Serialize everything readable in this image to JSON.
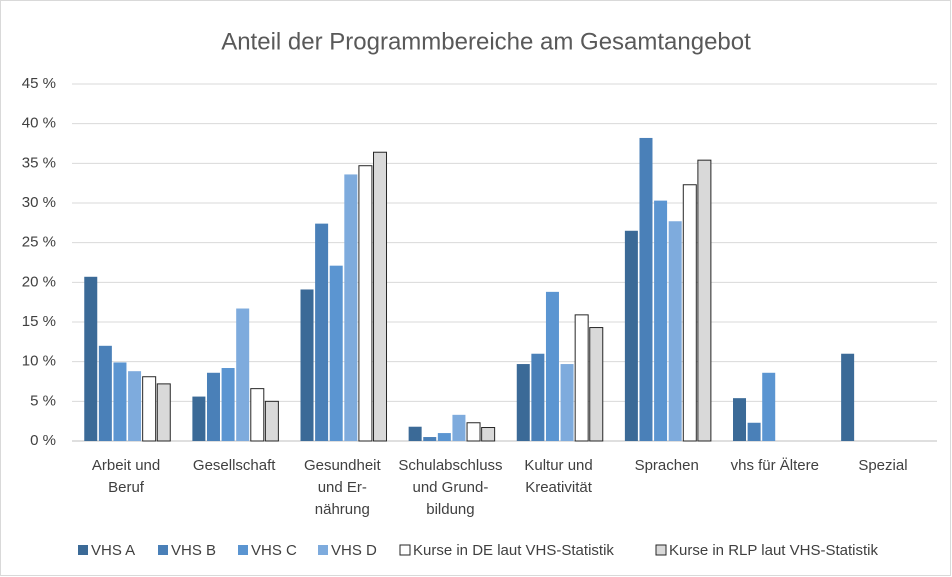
{
  "chart_data": {
    "type": "bar",
    "title": "Anteil der Programmbereiche am Gesamtangebot",
    "categories": [
      "Arbeit und\nBeruf",
      "Gesellschaft",
      "Gesundheit\nund Er-\nnährung",
      "Schulabschluss\nund Grund-\nbildung",
      "Kultur und\nKreativität",
      "Sprachen",
      "vhs für Ältere",
      "Spezial"
    ],
    "series": [
      {
        "name": "VHS A",
        "color": "#3b6a97",
        "values": [
          20.7,
          5.6,
          19.1,
          1.8,
          9.7,
          26.5,
          5.4,
          11.0
        ]
      },
      {
        "name": "VHS B",
        "color": "#4a80b8",
        "values": [
          12.0,
          8.6,
          27.4,
          0.5,
          11.0,
          38.2,
          2.3,
          null
        ]
      },
      {
        "name": "VHS C",
        "color": "#5b95d1",
        "values": [
          9.9,
          9.2,
          22.1,
          1.0,
          18.8,
          30.3,
          8.6,
          null
        ]
      },
      {
        "name": "VHS D",
        "color": "#7eabdd",
        "values": [
          8.8,
          16.7,
          33.6,
          3.3,
          9.7,
          27.7,
          null,
          null
        ]
      },
      {
        "name": "Kurse in DE laut VHS-Statistik",
        "color": "#ffffff",
        "values": [
          8.1,
          6.6,
          34.7,
          2.3,
          15.9,
          32.3,
          null,
          null
        ]
      },
      {
        "name": "Kurse in RLP laut VHS-Statistik",
        "color": "#d9d9d9",
        "values": [
          7.2,
          5.0,
          36.4,
          1.7,
          14.3,
          35.4,
          null,
          null
        ]
      }
    ],
    "ylim": [
      0,
      45
    ],
    "yticks": [
      {
        "value": 0,
        "label": "0 %"
      },
      {
        "value": 5,
        "label": "5 %"
      },
      {
        "value": 10,
        "label": "10 %"
      },
      {
        "value": 15,
        "label": "15 %"
      },
      {
        "value": 20,
        "label": "20 %"
      },
      {
        "value": 25,
        "label": "25 %"
      },
      {
        "value": 30,
        "label": "30 %"
      },
      {
        "value": 35,
        "label": "35 %"
      },
      {
        "value": 40,
        "label": "40 %"
      },
      {
        "value": 45,
        "label": "45 %"
      }
    ],
    "grid": true,
    "legend": "bottom"
  }
}
